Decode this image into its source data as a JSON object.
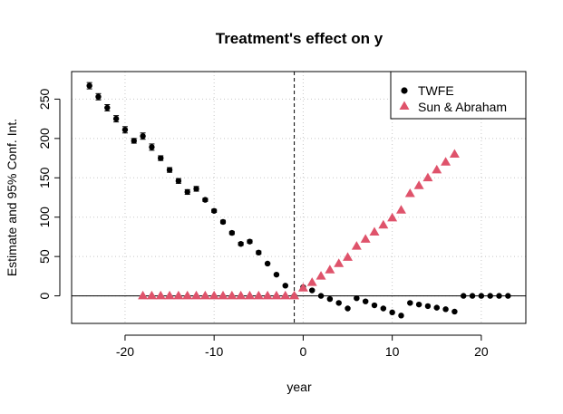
{
  "chart_data": {
    "type": "scatter",
    "title": "Treatment's effect on y",
    "xlabel": "year",
    "ylabel": "Estimate and 95% Conf. Int.",
    "xlim": [
      -26,
      25
    ],
    "ylim": [
      -35,
      285
    ],
    "xticks": [
      -20,
      -10,
      0,
      10,
      20
    ],
    "yticks": [
      0,
      50,
      100,
      150,
      200,
      250
    ],
    "grid": true,
    "legend_position": "top-right",
    "reference_lines": {
      "vertical_dashed_x": -1,
      "horizontal_y": 0
    },
    "series": [
      {
        "name": "TWFE",
        "marker": "circle",
        "color": "#000000",
        "error_bars": true,
        "points": [
          {
            "x": -24,
            "y": 267,
            "lo": 263,
            "hi": 271
          },
          {
            "x": -23,
            "y": 253,
            "lo": 249,
            "hi": 257
          },
          {
            "x": -22,
            "y": 239,
            "lo": 235,
            "hi": 243
          },
          {
            "x": -21,
            "y": 225,
            "lo": 221,
            "hi": 229
          },
          {
            "x": -20,
            "y": 211,
            "lo": 207,
            "hi": 215
          },
          {
            "x": -19,
            "y": 197,
            "lo": 194,
            "hi": 200
          },
          {
            "x": -18,
            "y": 203,
            "lo": 199,
            "hi": 207
          },
          {
            "x": -17,
            "y": 189,
            "lo": 185,
            "hi": 193
          },
          {
            "x": -16,
            "y": 175,
            "lo": 172,
            "hi": 178
          },
          {
            "x": -15,
            "y": 160,
            "lo": 157,
            "hi": 163
          },
          {
            "x": -14,
            "y": 146,
            "lo": 143,
            "hi": 149
          },
          {
            "x": -13,
            "y": 132,
            "lo": 129,
            "hi": 135
          },
          {
            "x": -12,
            "y": 136,
            "lo": 133,
            "hi": 139
          },
          {
            "x": -11,
            "y": 122,
            "lo": 120,
            "hi": 124
          },
          {
            "x": -10,
            "y": 108,
            "lo": 106,
            "hi": 110
          },
          {
            "x": -9,
            "y": 94,
            "lo": 92,
            "hi": 96
          },
          {
            "x": -8,
            "y": 80,
            "lo": 78,
            "hi": 82
          },
          {
            "x": -7,
            "y": 66,
            "lo": 64,
            "hi": 68
          },
          {
            "x": -6,
            "y": 69,
            "lo": 67,
            "hi": 71
          },
          {
            "x": -5,
            "y": 55,
            "lo": 53,
            "hi": 57
          },
          {
            "x": -4,
            "y": 41,
            "lo": 40,
            "hi": 42
          },
          {
            "x": -3,
            "y": 27,
            "lo": 26,
            "hi": 28
          },
          {
            "x": -2,
            "y": 13,
            "lo": 12,
            "hi": 14
          },
          {
            "x": -1,
            "y": 0,
            "lo": 0,
            "hi": 0
          },
          {
            "x": 0,
            "y": 11,
            "lo": 10,
            "hi": 12
          },
          {
            "x": 1,
            "y": 7,
            "lo": 6,
            "hi": 8
          },
          {
            "x": 2,
            "y": 0,
            "lo": -1,
            "hi": 1
          },
          {
            "x": 3,
            "y": -4,
            "lo": -5,
            "hi": -3
          },
          {
            "x": 4,
            "y": -9,
            "lo": -10,
            "hi": -8
          },
          {
            "x": 5,
            "y": -16,
            "lo": -17,
            "hi": -15
          },
          {
            "x": 6,
            "y": -3,
            "lo": -4,
            "hi": -2
          },
          {
            "x": 7,
            "y": -7,
            "lo": -8,
            "hi": -6
          },
          {
            "x": 8,
            "y": -12,
            "lo": -13,
            "hi": -11
          },
          {
            "x": 9,
            "y": -16,
            "lo": -17,
            "hi": -15
          },
          {
            "x": 10,
            "y": -21,
            "lo": -22,
            "hi": -20
          },
          {
            "x": 11,
            "y": -25,
            "lo": -26,
            "hi": -24
          },
          {
            "x": 12,
            "y": -9,
            "lo": -10,
            "hi": -8
          },
          {
            "x": 13,
            "y": -11,
            "lo": -12,
            "hi": -10
          },
          {
            "x": 14,
            "y": -13,
            "lo": -14,
            "hi": -12
          },
          {
            "x": 15,
            "y": -15,
            "lo": -16,
            "hi": -14
          },
          {
            "x": 16,
            "y": -17,
            "lo": -18,
            "hi": -16
          },
          {
            "x": 17,
            "y": -20,
            "lo": -21,
            "hi": -19
          },
          {
            "x": 18,
            "y": 0,
            "lo": 0,
            "hi": 0
          },
          {
            "x": 19,
            "y": 0,
            "lo": 0,
            "hi": 0
          },
          {
            "x": 20,
            "y": 0,
            "lo": 0,
            "hi": 0
          },
          {
            "x": 21,
            "y": 0,
            "lo": 0,
            "hi": 0
          },
          {
            "x": 22,
            "y": 0,
            "lo": 0,
            "hi": 0
          },
          {
            "x": 23,
            "y": 0,
            "lo": 0,
            "hi": 0
          }
        ]
      },
      {
        "name": "Sun & Abraham",
        "marker": "triangle",
        "color": "#DF536B",
        "error_bars": false,
        "points": [
          {
            "x": -18,
            "y": 0
          },
          {
            "x": -17,
            "y": 0
          },
          {
            "x": -16,
            "y": 0
          },
          {
            "x": -15,
            "y": 0
          },
          {
            "x": -14,
            "y": 0
          },
          {
            "x": -13,
            "y": 0
          },
          {
            "x": -12,
            "y": 0
          },
          {
            "x": -11,
            "y": 0
          },
          {
            "x": -10,
            "y": 0
          },
          {
            "x": -9,
            "y": 0
          },
          {
            "x": -8,
            "y": 0
          },
          {
            "x": -7,
            "y": 0
          },
          {
            "x": -6,
            "y": 0
          },
          {
            "x": -5,
            "y": 0
          },
          {
            "x": -4,
            "y": 0
          },
          {
            "x": -3,
            "y": 0
          },
          {
            "x": -2,
            "y": 0
          },
          {
            "x": -1,
            "y": 0
          },
          {
            "x": 0,
            "y": 10
          },
          {
            "x": 1,
            "y": 17
          },
          {
            "x": 2,
            "y": 25
          },
          {
            "x": 3,
            "y": 33
          },
          {
            "x": 4,
            "y": 41
          },
          {
            "x": 5,
            "y": 49
          },
          {
            "x": 6,
            "y": 63
          },
          {
            "x": 7,
            "y": 72
          },
          {
            "x": 8,
            "y": 81
          },
          {
            "x": 9,
            "y": 90
          },
          {
            "x": 10,
            "y": 99
          },
          {
            "x": 11,
            "y": 109
          },
          {
            "x": 12,
            "y": 130
          },
          {
            "x": 13,
            "y": 140
          },
          {
            "x": 14,
            "y": 150
          },
          {
            "x": 15,
            "y": 160
          },
          {
            "x": 16,
            "y": 170
          },
          {
            "x": 17,
            "y": 180
          }
        ]
      }
    ]
  }
}
